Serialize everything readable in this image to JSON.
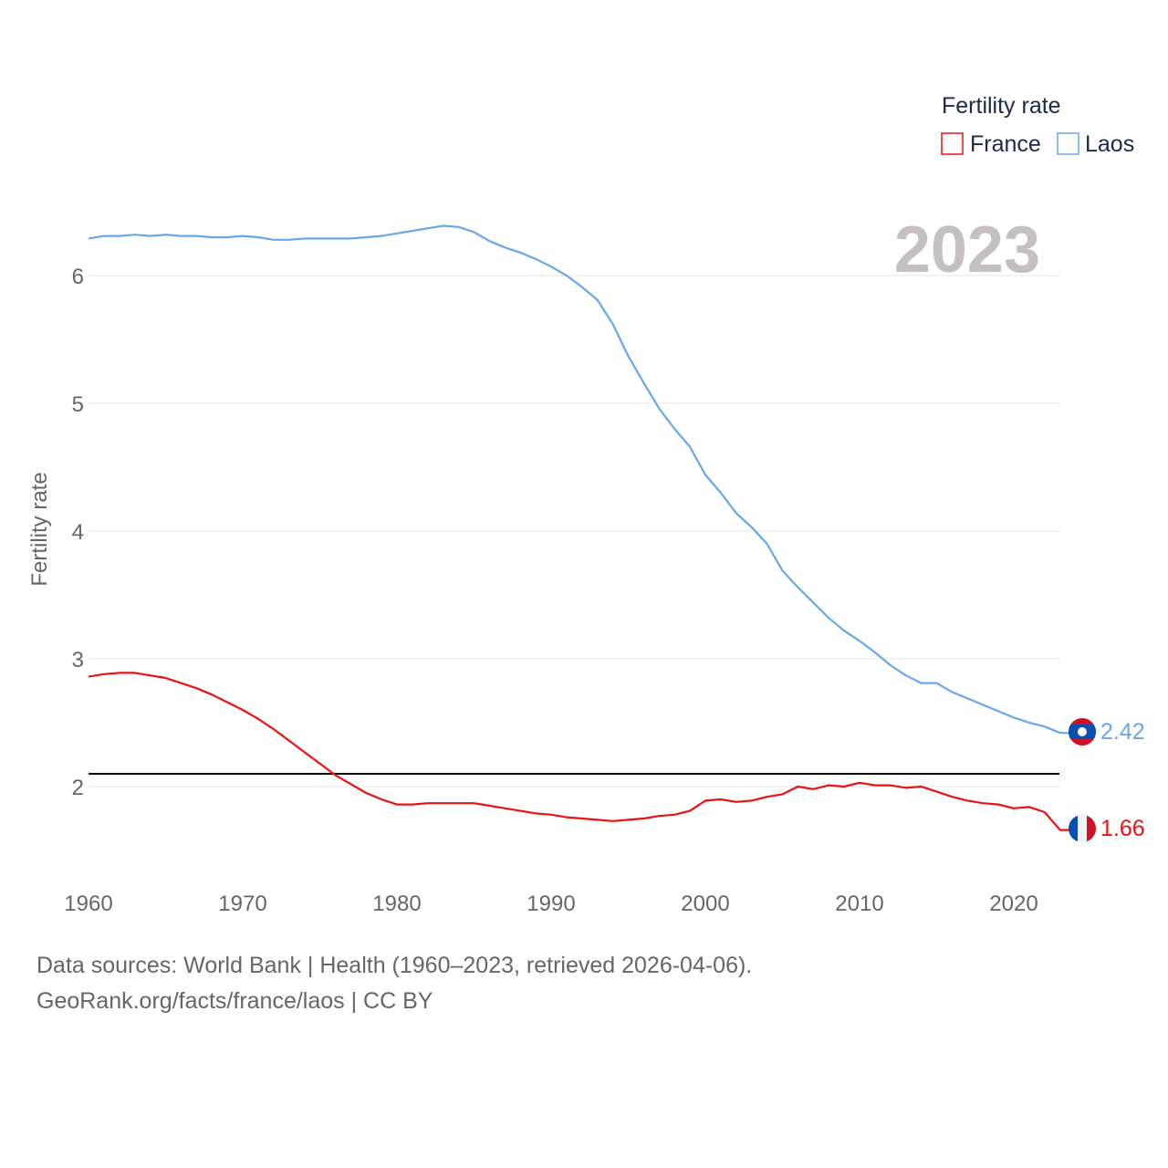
{
  "chart_data": {
    "type": "line",
    "title": "",
    "year_label": "2023",
    "ylabel": "Fertility rate",
    "xlabel": "",
    "xlim": [
      1960,
      2023
    ],
    "ylim": [
      1.4,
      6.6
    ],
    "x_ticks": [
      1960,
      1970,
      1980,
      1990,
      2000,
      2010,
      2020
    ],
    "y_ticks": [
      2,
      3,
      4,
      5,
      6
    ],
    "grid": true,
    "legend": {
      "title": "Fertility rate",
      "position": "top-right"
    },
    "reference_line": {
      "value": 2.1,
      "color": "#000000"
    },
    "x": [
      1960,
      1961,
      1962,
      1963,
      1964,
      1965,
      1966,
      1967,
      1968,
      1969,
      1970,
      1971,
      1972,
      1973,
      1974,
      1975,
      1976,
      1977,
      1978,
      1979,
      1980,
      1981,
      1982,
      1983,
      1984,
      1985,
      1986,
      1987,
      1988,
      1989,
      1990,
      1991,
      1992,
      1993,
      1994,
      1995,
      1996,
      1997,
      1998,
      1999,
      2000,
      2001,
      2002,
      2003,
      2004,
      2005,
      2006,
      2007,
      2008,
      2009,
      2010,
      2011,
      2012,
      2013,
      2014,
      2015,
      2016,
      2017,
      2018,
      2019,
      2020,
      2021,
      2022,
      2023
    ],
    "series": [
      {
        "name": "France",
        "color": "#ee1111",
        "end_label": "1.66",
        "values": [
          2.86,
          2.88,
          2.89,
          2.89,
          2.87,
          2.85,
          2.81,
          2.77,
          2.72,
          2.66,
          2.6,
          2.53,
          2.45,
          2.36,
          2.27,
          2.18,
          2.09,
          2.02,
          1.95,
          1.9,
          1.86,
          1.86,
          1.87,
          1.87,
          1.87,
          1.87,
          1.85,
          1.83,
          1.81,
          1.79,
          1.78,
          1.76,
          1.75,
          1.74,
          1.73,
          1.74,
          1.75,
          1.77,
          1.78,
          1.81,
          1.89,
          1.9,
          1.88,
          1.89,
          1.92,
          1.94,
          2.0,
          1.98,
          2.01,
          2.0,
          2.03,
          2.01,
          2.01,
          1.99,
          2.0,
          1.96,
          1.92,
          1.89,
          1.87,
          1.86,
          1.83,
          1.84,
          1.8,
          1.66
        ]
      },
      {
        "name": "Laos",
        "color": "#66a8e8",
        "end_label": "2.42",
        "values": [
          6.29,
          6.31,
          6.31,
          6.32,
          6.31,
          6.32,
          6.31,
          6.31,
          6.3,
          6.3,
          6.31,
          6.3,
          6.28,
          6.28,
          6.29,
          6.29,
          6.29,
          6.29,
          6.3,
          6.31,
          6.33,
          6.35,
          6.37,
          6.39,
          6.38,
          6.34,
          6.27,
          6.22,
          6.18,
          6.13,
          6.07,
          6.0,
          5.91,
          5.81,
          5.62,
          5.37,
          5.16,
          4.96,
          4.8,
          4.66,
          4.44,
          4.3,
          4.14,
          4.03,
          3.9,
          3.69,
          3.56,
          3.44,
          3.32,
          3.22,
          3.14,
          3.05,
          2.95,
          2.87,
          2.81,
          2.81,
          2.74,
          2.69,
          2.64,
          2.59,
          2.54,
          2.5,
          2.47,
          2.42
        ]
      }
    ]
  },
  "footer": {
    "line1": "Data sources: World Bank | Health (1960–2023, retrieved 2026-04-06).",
    "line2": "GeoRank.org/facts/france/laos | CC BY"
  }
}
